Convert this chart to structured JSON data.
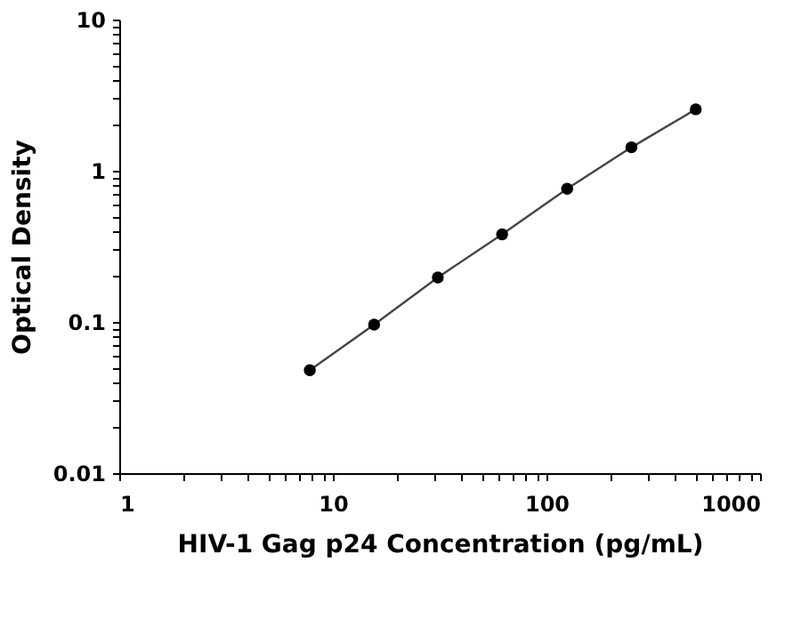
{
  "chart_data": {
    "type": "line",
    "xlabel": "HIV-1 Gag p24 Concentration (pg/mL)",
    "ylabel": "Optical Density",
    "x": [
      7.8,
      15.6,
      31,
      62,
      125,
      250,
      500
    ],
    "series": [
      {
        "color": "#000000",
        "values": [
          0.048,
          0.096,
          0.197,
          0.38,
          0.76,
          1.43,
          2.55
        ]
      }
    ],
    "log": "xy",
    "marker": "circle",
    "line_style": "solid",
    "grid": false,
    "xlim": [
      1,
      1000
    ],
    "ylim": [
      0.01,
      10
    ],
    "xticks": [
      1,
      {
        "value": 2,
        "label": null
      },
      {
        "value": 3,
        "label": null
      },
      {
        "value": 4,
        "label": null
      },
      {
        "value": 5,
        "label": null
      },
      {
        "value": 6,
        "label": null
      },
      {
        "value": 7,
        "label": null
      },
      {
        "value": 8,
        "label": null
      },
      {
        "value": 9,
        "label": null
      },
      10,
      {
        "value": 20,
        "label": null
      },
      {
        "value": 30,
        "label": null
      },
      {
        "value": 40,
        "label": null
      },
      {
        "value": 50,
        "label": null
      },
      {
        "value": 60,
        "label": null
      },
      {
        "value": 70,
        "label": null
      },
      {
        "value": 80,
        "label": null
      },
      {
        "value": 90,
        "label": null
      },
      100,
      {
        "value": 200,
        "label": null
      },
      {
        "value": 300,
        "label": null
      },
      {
        "value": 400,
        "label": null
      },
      {
        "value": 500,
        "label": null
      },
      {
        "value": 600,
        "label": null
      },
      {
        "value": 700,
        "label": null
      },
      {
        "value": 800,
        "label": null
      },
      {
        "value": 900,
        "label": null
      },
      1000
    ],
    "yticks": [
      0.01,
      {
        "value": 0.02,
        "label": null
      },
      {
        "value": 0.03,
        "label": null
      },
      {
        "value": 0.04,
        "label": null
      },
      {
        "value": 0.05,
        "label": null
      },
      {
        "value": 0.06,
        "label": null
      },
      {
        "value": 0.07,
        "label": null
      },
      {
        "value": 0.08,
        "label": null
      },
      {
        "value": 0.09,
        "label": null
      },
      0.1,
      {
        "value": 0.2,
        "label": null
      },
      {
        "value": 0.3,
        "label": null
      },
      {
        "value": 0.4,
        "label": null
      },
      {
        "value": 0.5,
        "label": null
      },
      {
        "value": 0.6,
        "label": null
      },
      {
        "value": 0.7,
        "label": null
      },
      {
        "value": 0.8,
        "label": null
      },
      {
        "value": 0.9,
        "label": null
      },
      1,
      {
        "value": 2,
        "label": null
      },
      {
        "value": 3,
        "label": null
      },
      {
        "value": 4,
        "label": null
      },
      {
        "value": 5,
        "label": null
      },
      {
        "value": 6,
        "label": null
      },
      {
        "value": 7,
        "label": null
      },
      {
        "value": 8,
        "label": null
      },
      {
        "value": 9,
        "label": null
      },
      10
    ]
  }
}
